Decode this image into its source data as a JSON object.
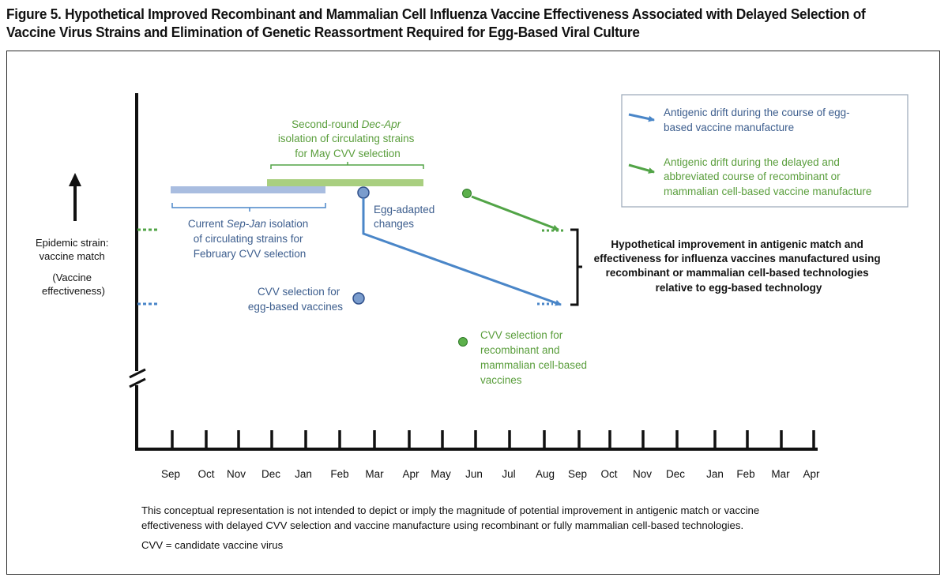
{
  "title": "Figure 5. Hypothetical Improved Recombinant and Mammalian Cell Influenza Vaccine Effectiveness Associated with Delayed Selection of Vaccine Virus Strains and Elimination of Genetic Reassortment Required for Egg-Based Viral Culture",
  "colors": {
    "blue": "#4a86c8",
    "blue_bar": "#a9bde0",
    "green": "#52a447",
    "green_bar": "#a9cf80",
    "green_text": "#5a9e3c",
    "blue_text": "#3d5e8e",
    "black": "#111111"
  },
  "y_axis": {
    "label_lines": [
      "Epidemic strain:",
      "vaccine match",
      "(Vaccine",
      "effectiveness)"
    ]
  },
  "months": [
    "Sep",
    "Oct",
    "Nov",
    "Dec",
    "Jan",
    "Feb",
    "Mar",
    "Apr",
    "May",
    "Jun",
    "Jul",
    "Aug",
    "Sep",
    "Oct",
    "Nov",
    "Dec",
    "Jan",
    "Feb",
    "Mar",
    "Apr"
  ],
  "annotations": {
    "second_round": {
      "line1": "Second-round ",
      "line1_italic": "Dec-Apr",
      "line2": "isolation of circulating strains",
      "line3": "for May CVV selection"
    },
    "current": {
      "line1": "Current ",
      "line1_italic": "Sep-Jan",
      "line1_end": " isolation",
      "line2": "of circulating strains for",
      "line3": "February CVV selection"
    },
    "egg_adapted": [
      "Egg-adapted",
      "changes"
    ],
    "cvv_egg": [
      "CVV selection for",
      "egg-based vaccines"
    ],
    "cvv_recombinant": [
      "CVV selection for",
      "recombinant and",
      "mammalian cell-based",
      "vaccines"
    ],
    "improvement": [
      "Hypothetical improvement in antigenic match and",
      "effectiveness for influenza vaccines manufactured using",
      "recombinant or mammalian cell-based technologies",
      "relative to egg-based technology"
    ]
  },
  "legend": {
    "blue": [
      "Antigenic drift during the course of egg-",
      "based vaccine manufacture"
    ],
    "green": [
      "Antigenic drift during the delayed and",
      "abbreviated course of recombinant or",
      "mammalian cell-based vaccine manufacture"
    ]
  },
  "footnote": {
    "lines": [
      "This conceptual representation is not intended to depict or imply the magnitude of potential improvement in antigenic match or vaccine",
      "effectiveness with delayed CVV selection and vaccine manufacture using recombinant or fully mammalian cell-based technologies."
    ],
    "abbrev": "CVV = candidate vaccine virus"
  }
}
